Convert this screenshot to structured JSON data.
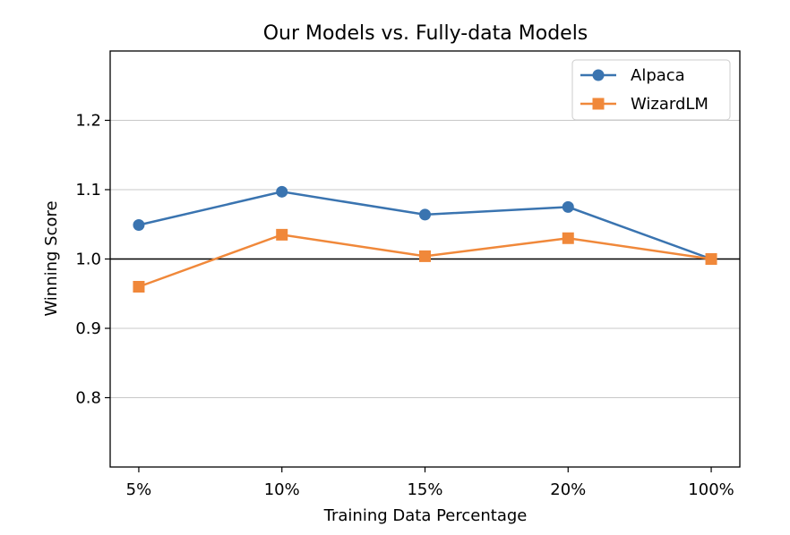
{
  "chart_data": {
    "type": "line",
    "title": "Our Models vs. Fully-data Models",
    "xlabel": "Training Data Percentage",
    "ylabel": "Winning Score",
    "categories": [
      "5%",
      "10%",
      "15%",
      "20%",
      "100%"
    ],
    "ylim": [
      0.7,
      1.3
    ],
    "yticks": [
      0.8,
      0.9,
      1.0,
      1.1,
      1.2
    ],
    "ytick_labels": [
      "0.8",
      "0.9",
      "1.0",
      "1.1",
      "1.2"
    ],
    "grid": "horizontal",
    "reference_line": 1.0,
    "legend": "top-right",
    "series": [
      {
        "name": "Alpaca",
        "values": [
          1.049,
          1.097,
          1.064,
          1.075,
          1.0
        ],
        "color": "#3a74b0",
        "marker": "circle"
      },
      {
        "name": "WizardLM",
        "values": [
          0.96,
          1.035,
          1.004,
          1.03,
          1.0
        ],
        "color": "#f0883a",
        "marker": "square"
      }
    ]
  }
}
